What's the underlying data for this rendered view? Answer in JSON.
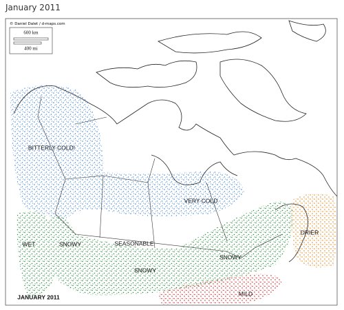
{
  "header": {
    "title": "January 2011"
  },
  "map": {
    "credit": "© Daniel Dalet / d-maps.com",
    "scale": {
      "km": "600 km",
      "mi": "400 mi"
    },
    "regions": [
      {
        "label": "BITTERLY COLD!"
      },
      {
        "label": "VERY COLD"
      },
      {
        "label": "WET"
      },
      {
        "label": "SNOWY"
      },
      {
        "label": "SEASONABLE"
      },
      {
        "label": "SNOWY"
      },
      {
        "label": "SNOWY"
      },
      {
        "label": "DRIER"
      },
      {
        "label": "MILD"
      }
    ],
    "footer": "JANUARY 2011"
  }
}
